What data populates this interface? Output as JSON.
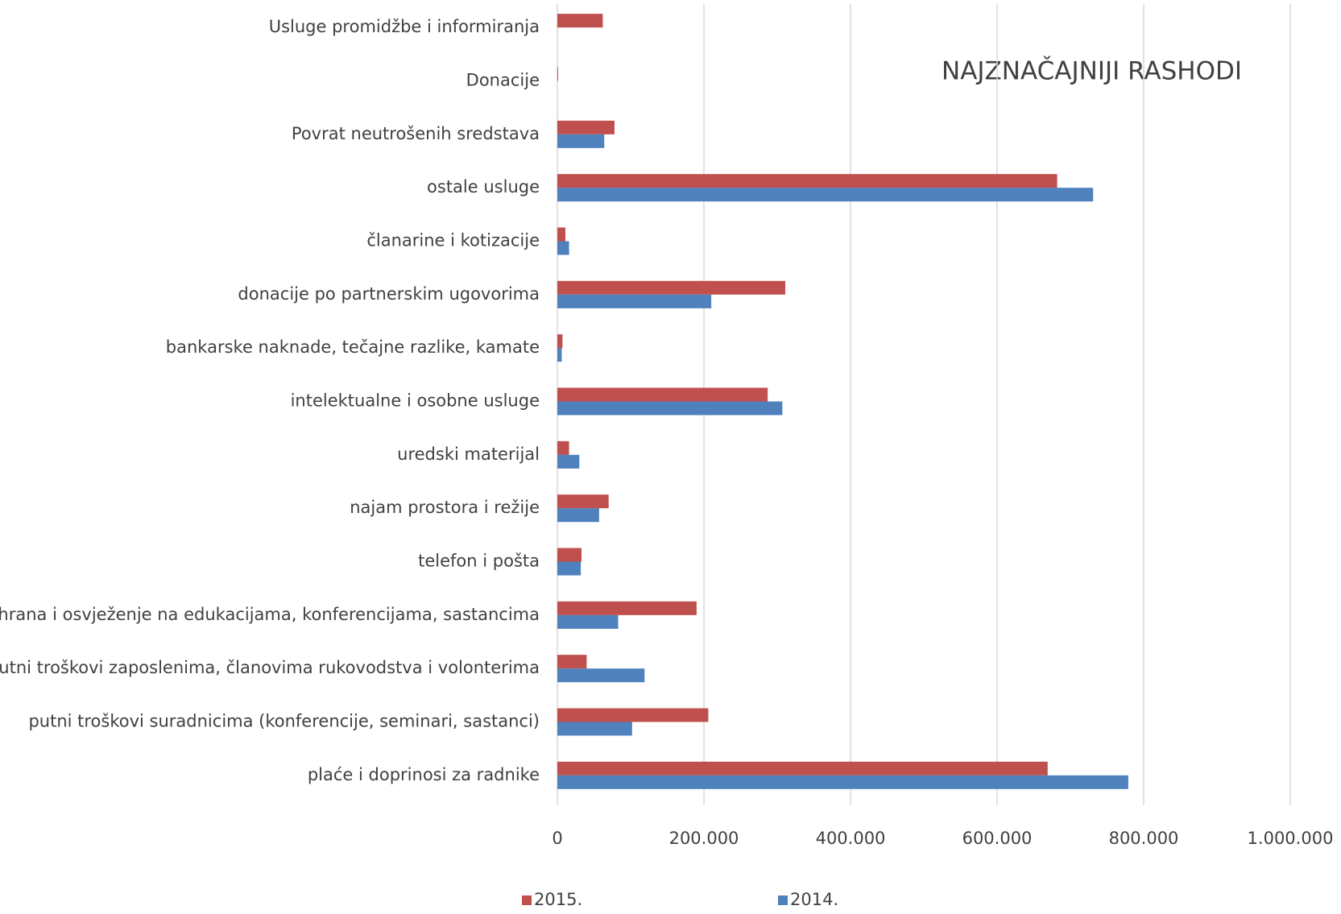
{
  "chart_data": {
    "type": "hbar",
    "title": "NAJZNAČAJNIJI RASHODI",
    "categories": [
      "Usluge promidžbe i informiranja",
      "Donacije",
      "Povrat neutrošenih sredstava",
      "ostale usluge",
      "članarine i kotizacije",
      "donacije po partnerskim ugovorima",
      "bankarske naknade, tečajne razlike, kamate",
      "intelektualne i osobne usluge",
      "uredski materijal",
      "najam prostora i režije",
      "telefon i pošta",
      "hrana i osvježenje na edukacijama, konferencijama, sastancima",
      "putni troškovi zaposlenima, članovima rukovodstva i volonterima",
      "putni troškovi suradnicima (konferencije, seminari, sastanci)",
      "plaće i doprinosi za radnike"
    ],
    "series": [
      {
        "name": "2015.",
        "color": "#c0504d",
        "values": [
          62000,
          1000,
          78000,
          682000,
          11000,
          311000,
          7000,
          287000,
          16000,
          70000,
          33000,
          190000,
          40000,
          206000,
          669000
        ]
      },
      {
        "name": "2014.",
        "color": "#4f81bd",
        "values": [
          0,
          0,
          64000,
          731000,
          16000,
          210000,
          6000,
          307000,
          30000,
          57000,
          32000,
          83000,
          119000,
          102000,
          779000
        ]
      }
    ],
    "xlim": [
      0,
      1000000
    ],
    "xticks": [
      0,
      {
        "value": 200000,
        "label": "200.000"
      },
      {
        "value": 400000,
        "label": "400.000"
      },
      {
        "value": 600000,
        "label": "600.000"
      },
      {
        "value": 800000,
        "label": "800.000"
      },
      {
        "value": 1000000,
        "label": "1.000.000"
      }
    ],
    "grid": true,
    "legend": "bottom"
  }
}
